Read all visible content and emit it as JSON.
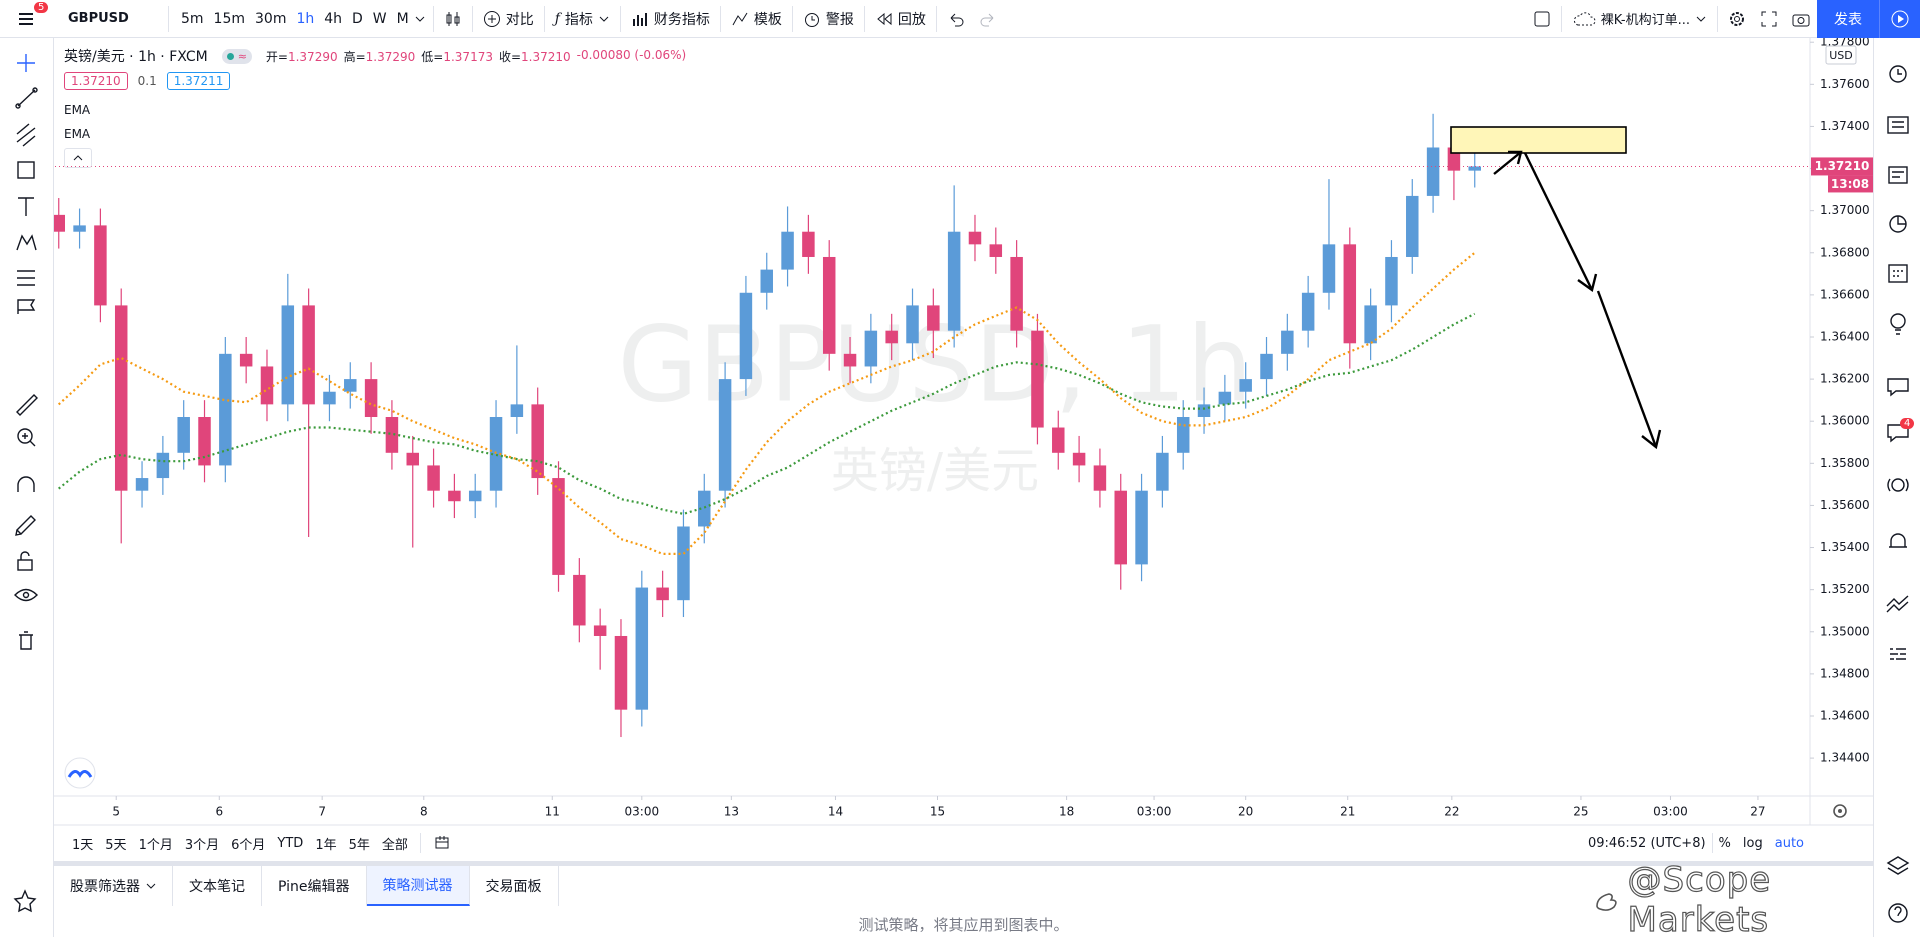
{
  "toolbar": {
    "symbol": "GBPUSD",
    "badge": "5",
    "intervals": [
      "5m",
      "15m",
      "30m",
      "1h",
      "4h",
      "D",
      "W",
      "M"
    ],
    "tools": [
      "对比",
      "指标",
      "财务指标",
      "模板",
      "警报",
      "回放"
    ],
    "layout_name": "裸K-机构订单...",
    "publish": "发表"
  },
  "legend": {
    "symbol_line": "英镑/美元 · 1h · FXCM",
    "ohlc": [
      {
        "label": "开=",
        "value": "1.37290"
      },
      {
        "label": "高=",
        "value": "1.37290"
      },
      {
        "label": "低=",
        "value": "1.37173"
      },
      {
        "label": "收=",
        "value": "1.37210"
      }
    ],
    "change": "-0.00080 (-0.06%)",
    "bid": "1.37210",
    "spread": "0.1",
    "ask": "1.37211"
  },
  "chart_data": {
    "type": "candlestick",
    "watermark": {
      "symbol": "GBPUSD, 1h",
      "name": "英镑/美元"
    },
    "up_color": "#5b9bd8",
    "down_color": "#e0457b",
    "open": [
      1.3698,
      1.369,
      1.3693,
      1.3655,
      1.3567,
      1.3573,
      1.3585,
      1.3602,
      1.3579,
      1.3632,
      1.3626,
      1.3608,
      1.3655,
      1.3608,
      1.3614,
      1.362,
      1.3602,
      1.3585,
      1.3579,
      1.3567,
      1.3562,
      1.3567,
      1.3602,
      1.3608,
      1.3573,
      1.3527,
      1.3503,
      1.3498,
      1.3463,
      1.3521,
      1.3515,
      1.355,
      1.3567,
      1.362,
      1.3661,
      1.3672,
      1.369,
      1.3678,
      1.3632,
      1.3626,
      1.3643,
      1.3637,
      1.3655,
      1.3643,
      1.369,
      1.3684,
      1.3678,
      1.3643,
      1.3597,
      1.3585,
      1.3579,
      1.3567,
      1.3532,
      1.3567,
      1.3585,
      1.3602,
      1.3608,
      1.3614,
      1.362,
      1.3632,
      1.3643,
      1.3661,
      1.3684,
      1.3637,
      1.3655,
      1.3678,
      1.3707,
      1.373,
      1.3719
    ],
    "high": [
      1.3706,
      1.3701,
      1.3701,
      1.3663,
      1.3581,
      1.3593,
      1.361,
      1.361,
      1.364,
      1.364,
      1.3634,
      1.367,
      1.3663,
      1.3622,
      1.3628,
      1.3628,
      1.361,
      1.3593,
      1.3587,
      1.3575,
      1.3575,
      1.361,
      1.3636,
      1.3616,
      1.3581,
      1.3535,
      1.3511,
      1.3506,
      1.3529,
      1.3529,
      1.3558,
      1.3575,
      1.3628,
      1.3669,
      1.368,
      1.3702,
      1.3698,
      1.3686,
      1.364,
      1.3651,
      1.3651,
      1.3663,
      1.3663,
      1.3712,
      1.3698,
      1.3692,
      1.3686,
      1.3651,
      1.3605,
      1.3593,
      1.3587,
      1.3575,
      1.3575,
      1.3593,
      1.361,
      1.3616,
      1.3622,
      1.3628,
      1.364,
      1.3651,
      1.3669,
      1.3715,
      1.3692,
      1.3663,
      1.3686,
      1.3715,
      1.3746,
      1.3738,
      1.3729
    ],
    "low": [
      1.3682,
      1.3682,
      1.3647,
      1.3542,
      1.3559,
      1.3565,
      1.3577,
      1.3571,
      1.3571,
      1.3618,
      1.36,
      1.36,
      1.3545,
      1.36,
      1.3606,
      1.3594,
      1.3577,
      1.354,
      1.3559,
      1.3554,
      1.3554,
      1.3559,
      1.3594,
      1.3565,
      1.3519,
      1.3495,
      1.3482,
      1.345,
      1.3455,
      1.3507,
      1.3507,
      1.3542,
      1.3559,
      1.3612,
      1.3653,
      1.3664,
      1.367,
      1.3624,
      1.3618,
      1.3618,
      1.3629,
      1.3629,
      1.363,
      1.3635,
      1.3676,
      1.367,
      1.3635,
      1.3589,
      1.3577,
      1.3571,
      1.3559,
      1.352,
      1.3524,
      1.3559,
      1.3577,
      1.3594,
      1.36,
      1.3606,
      1.3612,
      1.3624,
      1.3635,
      1.3653,
      1.3625,
      1.3629,
      1.3647,
      1.367,
      1.3699,
      1.3705,
      1.3711
    ],
    "close": [
      1.369,
      1.3693,
      1.3655,
      1.3567,
      1.3573,
      1.3585,
      1.3602,
      1.3579,
      1.3632,
      1.3626,
      1.3608,
      1.3655,
      1.3608,
      1.3614,
      1.362,
      1.3602,
      1.3585,
      1.3579,
      1.3567,
      1.3562,
      1.3567,
      1.3602,
      1.3608,
      1.3573,
      1.3527,
      1.3503,
      1.3498,
      1.3463,
      1.3521,
      1.3515,
      1.355,
      1.3567,
      1.362,
      1.3661,
      1.3672,
      1.369,
      1.3678,
      1.3632,
      1.3626,
      1.3643,
      1.3637,
      1.3655,
      1.3643,
      1.369,
      1.3684,
      1.3678,
      1.3643,
      1.3597,
      1.3585,
      1.3579,
      1.3567,
      1.3532,
      1.3567,
      1.3585,
      1.3602,
      1.3608,
      1.3614,
      1.362,
      1.3632,
      1.3643,
      1.3661,
      1.3684,
      1.3637,
      1.3655,
      1.3678,
      1.3707,
      1.373,
      1.3719,
      1.3721
    ],
    "series": [
      {
        "name": "EMA",
        "color": "#f59a12",
        "values": [
          1.3608,
          1.3617,
          1.3627,
          1.363,
          1.3625,
          1.362,
          1.3614,
          1.3612,
          1.361,
          1.3609,
          1.3615,
          1.3621,
          1.3625,
          1.3619,
          1.3613,
          1.3608,
          1.3605,
          1.36,
          1.3596,
          1.3592,
          1.3589,
          1.3585,
          1.3582,
          1.3576,
          1.3568,
          1.3559,
          1.3552,
          1.3544,
          1.3541,
          1.3537,
          1.3537,
          1.3547,
          1.3562,
          1.3577,
          1.359,
          1.36,
          1.3608,
          1.3614,
          1.3618,
          1.3622,
          1.3626,
          1.3629,
          1.3633,
          1.364,
          1.3646,
          1.365,
          1.3654,
          1.3648,
          1.3637,
          1.3628,
          1.362,
          1.3611,
          1.3604,
          1.36,
          1.3598,
          1.3598,
          1.36,
          1.3602,
          1.3606,
          1.3612,
          1.362,
          1.3629,
          1.3633,
          1.3637,
          1.3644,
          1.3654,
          1.3663,
          1.3672,
          1.368
        ]
      },
      {
        "name": "EMA",
        "color": "#3c9a3c",
        "values": [
          1.3568,
          1.3576,
          1.3582,
          1.3584,
          1.3582,
          1.3581,
          1.3581,
          1.3583,
          1.3586,
          1.3589,
          1.3592,
          1.3595,
          1.3597,
          1.3597,
          1.3596,
          1.3595,
          1.3594,
          1.3592,
          1.359,
          1.3589,
          1.3586,
          1.3584,
          1.3582,
          1.3581,
          1.3578,
          1.3572,
          1.3568,
          1.3563,
          1.3561,
          1.3558,
          1.3556,
          1.3559,
          1.3563,
          1.3568,
          1.3574,
          1.3578,
          1.3584,
          1.359,
          1.3595,
          1.36,
          1.3605,
          1.3609,
          1.3613,
          1.3618,
          1.3622,
          1.3626,
          1.3628,
          1.3627,
          1.3625,
          1.3622,
          1.3618,
          1.3613,
          1.3609,
          1.3607,
          1.3606,
          1.3606,
          1.3608,
          1.3609,
          1.3612,
          1.3615,
          1.3619,
          1.3622,
          1.3623,
          1.3626,
          1.3629,
          1.3634,
          1.364,
          1.3646,
          1.3651
        ]
      }
    ],
    "xlim": [
      -0.18,
      84.1
    ],
    "xticks": [
      {
        "value": 2.76,
        "label": "5"
      },
      {
        "value": 7.71,
        "label": "6"
      },
      {
        "value": 12.65,
        "label": "7"
      },
      {
        "value": 17.53,
        "label": "8"
      },
      {
        "value": 23.7,
        "label": "11"
      },
      {
        "value": 28.0,
        "label": "03:00"
      },
      {
        "value": 32.3,
        "label": "13"
      },
      {
        "value": 37.3,
        "label": "14"
      },
      {
        "value": 42.2,
        "label": "15"
      },
      {
        "value": 48.4,
        "label": "18"
      },
      {
        "value": 52.6,
        "label": "03:00"
      },
      {
        "value": 57.0,
        "label": "20"
      },
      {
        "value": 61.9,
        "label": "21"
      },
      {
        "value": 66.9,
        "label": "22"
      },
      {
        "value": 73.1,
        "label": "25"
      },
      {
        "value": 77.4,
        "label": "03:00"
      },
      {
        "value": 81.6,
        "label": "27"
      }
    ],
    "ylim": [
      1.3422,
      1.3782
    ],
    "yticks": [
      {
        "value": 1.378,
        "label": "1.37800"
      },
      {
        "value": 1.376,
        "label": "1.37600"
      },
      {
        "value": 1.374,
        "label": "1.37400"
      },
      {
        "value": 1.372,
        "label": "1.37200"
      },
      {
        "value": 1.37,
        "label": "1.37000"
      },
      {
        "value": 1.368,
        "label": "1.36800"
      },
      {
        "value": 1.366,
        "label": "1.36600"
      },
      {
        "value": 1.364,
        "label": "1.36400"
      },
      {
        "value": 1.362,
        "label": "1.36200"
      },
      {
        "value": 1.36,
        "label": "1.36000"
      },
      {
        "value": 1.358,
        "label": "1.35800"
      },
      {
        "value": 1.356,
        "label": "1.35600"
      },
      {
        "value": 1.354,
        "label": "1.35400"
      },
      {
        "value": 1.352,
        "label": "1.35200"
      },
      {
        "value": 1.35,
        "label": "1.35000"
      },
      {
        "value": 1.348,
        "label": "1.34800"
      },
      {
        "value": 1.346,
        "label": "1.34600"
      },
      {
        "value": 1.344,
        "label": "1.34400"
      }
    ],
    "grid": false,
    "currency": "USD",
    "last_price": {
      "value": 1.3721,
      "label": "1.37210"
    },
    "countdown": "13:08"
  },
  "bottom_bar": {
    "ranges": [
      "1天",
      "5天",
      "1个月",
      "3个月",
      "6个月",
      "YTD",
      "1年",
      "5年",
      "全部"
    ],
    "clock": "09:46:52 (UTC+8)",
    "percent": "%",
    "log": "log",
    "auto": "auto"
  },
  "panel": {
    "tabs": [
      "股票筛选器",
      "文本笔记",
      "Pine编辑器",
      "策略测试器",
      "交易面板"
    ],
    "message": "测试策略，将其应用到图表中。"
  },
  "right_badge": "4",
  "watermark": "@Scope Markets"
}
